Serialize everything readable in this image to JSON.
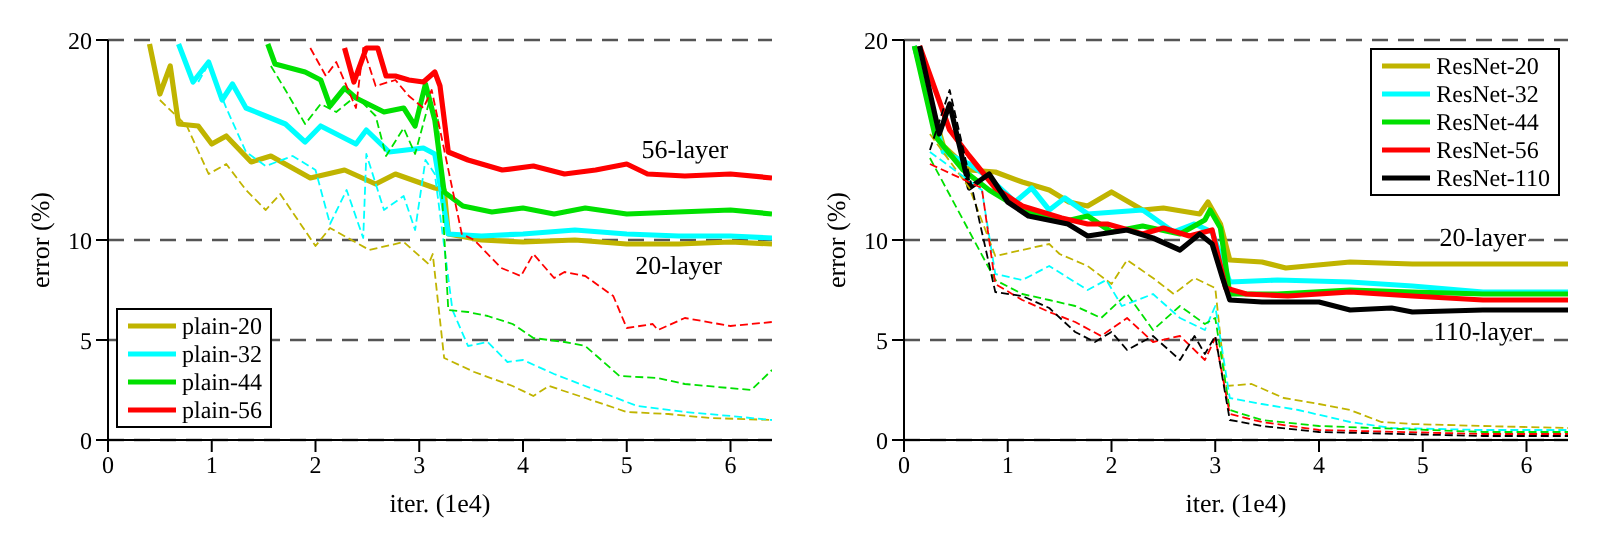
{
  "chart_data": [
    {
      "type": "line",
      "xlabel": "iter. (1e4)",
      "ylabel": "error (%)",
      "xlim": [
        0,
        6.4
      ],
      "xticks": [
        0,
        1,
        2,
        3,
        4,
        5,
        6
      ],
      "ylim": [
        0,
        20
      ],
      "yticks": [
        0,
        5,
        10,
        20
      ],
      "grid": "y",
      "legend": "bottom left",
      "annotations": [
        {
          "text": "56-layer",
          "x": 5.56,
          "y": 13.2
        },
        {
          "text": "20-layer",
          "x": 5.5,
          "y": 9.8
        }
      ],
      "series": [
        {
          "name": "plain-20",
          "color": "#c0b400",
          "line_style": "solid",
          "x": [
            0.4,
            0.5,
            0.6,
            0.68,
            0.87,
            1.0,
            1.14,
            1.38,
            1.57,
            1.95,
            2.28,
            2.58,
            2.77,
            3.15,
            3.24,
            3.28,
            3.6,
            4.0,
            4.5,
            5.0,
            5.5,
            6.0,
            6.4
          ],
          "values": [
            19.8,
            17.3,
            18.7,
            15.8,
            15.7,
            14.8,
            15.2,
            13.9,
            14.2,
            13.1,
            13.5,
            12.8,
            13.3,
            12.6,
            12.5,
            10.3,
            10.0,
            9.9,
            10.0,
            9.8,
            9.8,
            9.9,
            9.8
          ]
        },
        {
          "name": "plain-32",
          "color": "#00ffff",
          "line_style": "solid",
          "x": [
            0.68,
            0.82,
            0.97,
            1.1,
            1.2,
            1.33,
            1.52,
            1.71,
            1.9,
            2.05,
            2.39,
            2.49,
            2.71,
            3.04,
            3.15,
            3.28,
            3.6,
            4.0,
            4.5,
            5.0,
            5.5,
            6.0,
            6.4
          ],
          "values": [
            19.8,
            17.9,
            18.9,
            17.0,
            17.8,
            16.6,
            16.2,
            15.8,
            14.9,
            15.7,
            14.8,
            15.5,
            14.4,
            14.6,
            14.3,
            10.3,
            10.2,
            10.3,
            10.5,
            10.3,
            10.2,
            10.2,
            10.1
          ]
        },
        {
          "name": "plain-44",
          "color": "#00e000",
          "line_style": "solid",
          "x": [
            1.54,
            1.61,
            1.9,
            2.05,
            2.14,
            2.28,
            2.39,
            2.66,
            2.85,
            2.96,
            3.06,
            3.15,
            3.24,
            3.42,
            3.7,
            4.0,
            4.3,
            4.6,
            5.0,
            5.5,
            6.0,
            6.4
          ],
          "values": [
            19.8,
            18.8,
            18.4,
            18.0,
            16.7,
            17.6,
            17.1,
            16.4,
            16.6,
            15.7,
            17.8,
            16.0,
            12.4,
            11.7,
            11.4,
            11.6,
            11.3,
            11.6,
            11.3,
            11.4,
            11.5,
            11.3
          ]
        },
        {
          "name": "plain-56",
          "color": "#ff0000",
          "line_style": "solid",
          "x": [
            2.28,
            2.37,
            2.49,
            2.6,
            2.68,
            2.77,
            2.9,
            3.04,
            3.15,
            3.2,
            3.28,
            3.47,
            3.8,
            4.1,
            4.4,
            4.7,
            5.0,
            5.2,
            5.56,
            6.0,
            6.4
          ],
          "values": [
            19.6,
            17.9,
            19.6,
            19.6,
            18.2,
            18.2,
            18.0,
            17.9,
            18.4,
            17.7,
            14.4,
            14.0,
            13.5,
            13.7,
            13.3,
            13.5,
            13.8,
            13.3,
            13.2,
            13.3,
            13.1
          ]
        },
        {
          "color": "#c0b400",
          "line_style": "dashed",
          "x": [
            0.5,
            0.76,
            0.97,
            1.14,
            1.33,
            1.52,
            1.66,
            2.0,
            2.14,
            2.52,
            2.85,
            3.09,
            3.13,
            3.24,
            3.53,
            3.9,
            4.1,
            4.25,
            4.6,
            5.0,
            5.4,
            5.8,
            6.4
          ],
          "values": [
            17.0,
            15.7,
            13.3,
            13.8,
            12.5,
            11.5,
            12.3,
            9.7,
            10.6,
            9.5,
            9.9,
            8.8,
            9.3,
            4.1,
            3.4,
            2.7,
            2.2,
            2.7,
            2.1,
            1.4,
            1.3,
            1.1,
            1.0
          ]
        },
        {
          "color": "#00ffff",
          "line_style": "dashed",
          "x": [
            0.87,
            0.97,
            1.14,
            1.33,
            1.52,
            1.78,
            2.0,
            2.14,
            2.3,
            2.46,
            2.49,
            2.66,
            2.85,
            2.96,
            3.06,
            3.15,
            3.32,
            3.47,
            3.66,
            3.85,
            4.0,
            4.3,
            4.8,
            5.1,
            5.56,
            6.0,
            6.4
          ],
          "values": [
            17.9,
            18.8,
            16.6,
            14.4,
            13.7,
            14.2,
            13.5,
            10.8,
            12.5,
            10.1,
            14.3,
            11.5,
            12.2,
            10.5,
            14.0,
            13.3,
            6.5,
            4.7,
            4.9,
            3.9,
            4.0,
            3.3,
            2.3,
            1.7,
            1.4,
            1.2,
            1.0
          ]
        },
        {
          "color": "#00e000",
          "line_style": "dashed",
          "x": [
            1.57,
            1.71,
            1.9,
            2.05,
            2.2,
            2.39,
            2.58,
            2.68,
            2.85,
            2.96,
            3.09,
            3.18,
            3.28,
            3.47,
            3.66,
            3.9,
            4.1,
            4.4,
            4.6,
            4.93,
            5.3,
            5.56,
            6.2,
            6.4
          ],
          "values": [
            18.7,
            17.5,
            15.8,
            16.8,
            16.4,
            17.2,
            16.2,
            14.2,
            15.6,
            14.3,
            16.8,
            16.0,
            6.5,
            6.4,
            6.2,
            5.8,
            5.1,
            4.9,
            4.7,
            3.2,
            3.1,
            2.8,
            2.5,
            3.5
          ]
        },
        {
          "color": "#ff0000",
          "line_style": "dashed",
          "x": [
            1.95,
            2.1,
            2.2,
            2.39,
            2.46,
            2.58,
            2.77,
            2.9,
            3.04,
            3.12,
            3.41,
            3.53,
            3.79,
            3.98,
            4.1,
            4.3,
            4.4,
            4.6,
            4.87,
            5.0,
            5.25,
            5.3,
            5.56,
            6.0,
            6.4
          ],
          "values": [
            19.6,
            18.2,
            18.9,
            16.6,
            19.6,
            17.7,
            18.0,
            17.2,
            16.6,
            17.5,
            10.3,
            10.0,
            8.6,
            8.2,
            9.3,
            8.1,
            8.4,
            8.2,
            7.2,
            5.6,
            5.8,
            5.5,
            6.1,
            5.7,
            5.9
          ]
        }
      ]
    },
    {
      "type": "line",
      "xlabel": "iter. (1e4)",
      "ylabel": "error (%)",
      "xlim": [
        0,
        6.4
      ],
      "xticks": [
        0,
        1,
        2,
        3,
        4,
        5,
        6
      ],
      "ylim": [
        0,
        20
      ],
      "yticks": [
        0,
        5,
        10,
        20
      ],
      "grid": "y",
      "legend": "top right",
      "annotations": [
        {
          "text": "20-layer",
          "x": 5.58,
          "y": 8.8
        },
        {
          "text": "110-layer",
          "x": 5.58,
          "y": 6.5
        }
      ],
      "series": [
        {
          "name": "ResNet-20",
          "color": "#c0b400",
          "line_style": "solid",
          "x": [
            0.1,
            0.38,
            0.63,
            0.88,
            1.14,
            1.4,
            1.59,
            1.77,
            2.0,
            2.3,
            2.5,
            2.85,
            2.93,
            3.05,
            3.14,
            3.45,
            3.68,
            4.3,
            4.9,
            5.58,
            6.4
          ],
          "values": [
            19.7,
            14.7,
            13.5,
            13.4,
            12.9,
            12.5,
            11.9,
            11.7,
            12.4,
            11.5,
            11.6,
            11.3,
            11.9,
            10.8,
            9.0,
            8.9,
            8.6,
            8.9,
            8.8,
            8.8,
            8.8
          ]
        },
        {
          "name": "ResNet-32",
          "color": "#00ffff",
          "line_style": "solid",
          "x": [
            0.1,
            0.38,
            0.63,
            0.82,
            1.07,
            1.23,
            1.4,
            1.55,
            1.77,
            2.3,
            2.6,
            2.8,
            2.97,
            3.14,
            3.6,
            4.3,
            4.9,
            5.58,
            6.4
          ],
          "values": [
            19.7,
            14.4,
            13.8,
            13.1,
            11.9,
            12.6,
            11.5,
            12.1,
            11.3,
            11.5,
            10.4,
            10.8,
            10.4,
            7.9,
            8.0,
            7.9,
            7.7,
            7.4,
            7.4
          ]
        },
        {
          "name": "ResNet-44",
          "color": "#00e000",
          "line_style": "solid",
          "x": [
            0.1,
            0.3,
            0.57,
            0.82,
            1.14,
            1.52,
            1.77,
            2.0,
            2.3,
            2.66,
            2.9,
            2.95,
            3.05,
            3.14,
            3.6,
            4.3,
            4.9,
            5.58,
            6.4
          ],
          "values": [
            19.7,
            15.2,
            13.5,
            12.5,
            11.5,
            10.9,
            11.2,
            10.4,
            10.7,
            10.3,
            11.0,
            11.5,
            10.6,
            7.3,
            7.3,
            7.5,
            7.4,
            7.3,
            7.3
          ]
        },
        {
          "name": "ResNet-56",
          "color": "#ff0000",
          "line_style": "solid",
          "x": [
            0.15,
            0.44,
            0.63,
            0.88,
            1.14,
            1.52,
            1.77,
            1.96,
            2.3,
            2.5,
            2.75,
            2.97,
            3.1,
            3.3,
            3.7,
            4.3,
            4.9,
            5.58,
            6.4
          ],
          "values": [
            19.7,
            15.5,
            14.2,
            12.6,
            11.7,
            11.1,
            10.8,
            10.8,
            10.3,
            10.6,
            10.2,
            10.5,
            7.6,
            7.3,
            7.2,
            7.4,
            7.2,
            7.0,
            7.0
          ]
        },
        {
          "name": "ResNet-110",
          "color": "#000000",
          "line_style": "solid",
          "x": [
            0.15,
            0.34,
            0.44,
            0.63,
            0.82,
            1.0,
            1.2,
            1.58,
            1.77,
            2.15,
            2.4,
            2.66,
            2.85,
            2.97,
            3.07,
            3.14,
            3.45,
            4.0,
            4.3,
            4.7,
            4.9,
            5.58,
            6.4
          ],
          "values": [
            19.7,
            15.3,
            16.8,
            12.6,
            13.3,
            11.9,
            11.2,
            10.8,
            10.2,
            10.5,
            10.1,
            9.5,
            10.3,
            9.8,
            8.1,
            7.0,
            6.9,
            6.9,
            6.5,
            6.6,
            6.4,
            6.5,
            6.5
          ]
        },
        {
          "color": "#c0b400",
          "line_style": "dashed",
          "x": [
            0.25,
            0.63,
            0.88,
            1.14,
            1.4,
            1.5,
            1.77,
            2.0,
            2.15,
            2.4,
            2.6,
            2.8,
            3.0,
            3.1,
            3.35,
            3.66,
            4.0,
            4.3,
            4.6,
            4.9,
            5.58,
            6.4
          ],
          "values": [
            15.3,
            12.6,
            9.2,
            9.5,
            9.8,
            9.3,
            8.7,
            7.8,
            9.0,
            8.1,
            7.3,
            8.1,
            7.6,
            2.7,
            2.8,
            2.1,
            1.8,
            1.5,
            0.9,
            0.8,
            0.7,
            0.6
          ]
        },
        {
          "color": "#00ffff",
          "line_style": "dashed",
          "x": [
            0.25,
            0.75,
            0.88,
            1.14,
            1.4,
            1.77,
            1.95,
            2.1,
            2.4,
            2.66,
            2.9,
            3.0,
            3.14,
            3.45,
            3.8,
            4.3,
            4.7,
            5.58,
            6.4
          ],
          "values": [
            14.4,
            12.5,
            8.3,
            8.0,
            8.7,
            7.5,
            8.0,
            6.7,
            7.3,
            6.1,
            5.5,
            6.7,
            2.1,
            1.8,
            1.5,
            0.9,
            0.6,
            0.5,
            0.5
          ]
        },
        {
          "color": "#00e000",
          "line_style": "dashed",
          "x": [
            0.25,
            0.88,
            1.14,
            1.4,
            1.65,
            1.9,
            2.15,
            2.4,
            2.66,
            2.9,
            3.0,
            3.14,
            3.45,
            4.0,
            5.58,
            6.4
          ],
          "values": [
            14.1,
            8.0,
            7.3,
            7.0,
            6.7,
            6.1,
            7.3,
            5.5,
            6.7,
            5.8,
            6.1,
            1.5,
            1.0,
            0.7,
            0.4,
            0.4
          ]
        },
        {
          "color": "#ff0000",
          "line_style": "dashed",
          "x": [
            0.25,
            0.75,
            0.88,
            1.14,
            1.4,
            1.65,
            1.9,
            2.15,
            2.4,
            2.66,
            2.9,
            3.0,
            3.14,
            3.45,
            4.0,
            5.58,
            6.4
          ],
          "values": [
            13.8,
            12.6,
            7.8,
            7.0,
            6.4,
            5.9,
            5.2,
            6.1,
            4.9,
            5.2,
            4.0,
            5.1,
            1.3,
            0.9,
            0.5,
            0.3,
            0.3
          ]
        },
        {
          "color": "#000000",
          "line_style": "dashed",
          "x": [
            0.25,
            0.44,
            0.63,
            0.88,
            1.14,
            1.4,
            1.65,
            1.84,
            2.0,
            2.15,
            2.4,
            2.66,
            2.8,
            2.9,
            3.0,
            3.14,
            3.45,
            4.0,
            5.58,
            6.4
          ],
          "values": [
            14.5,
            17.5,
            13.2,
            7.4,
            7.2,
            6.6,
            5.4,
            4.9,
            5.4,
            4.5,
            5.2,
            4.0,
            5.2,
            4.3,
            5.2,
            1.0,
            0.7,
            0.4,
            0.2,
            0.2
          ]
        }
      ]
    }
  ]
}
